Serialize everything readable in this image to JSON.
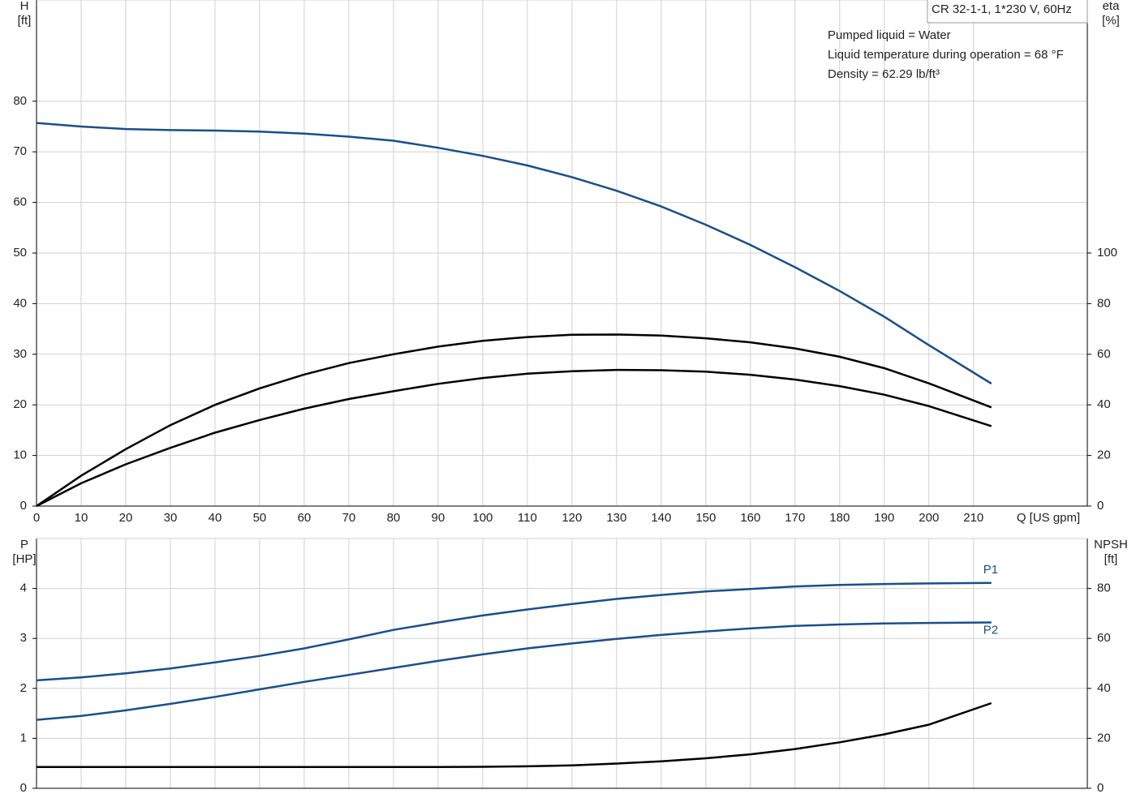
{
  "chart_data": [
    {
      "type": "line",
      "title": "CR 32-1-1, 1*230 V, 60Hz",
      "annotations": [
        "Pumped liquid = Water",
        "Liquid temperature during operation = 68 °F",
        "Density = 62.29 lb/ft³"
      ],
      "ylabel": [
        "H",
        "[ft]"
      ],
      "y2label": [
        "eta",
        "[%]"
      ],
      "xlabel": "Q [US gpm]",
      "xlim": [
        0,
        235.5
      ],
      "xticks": [
        0,
        10,
        20,
        30,
        40,
        50,
        60,
        70,
        80,
        90,
        100,
        110,
        120,
        130,
        140,
        150,
        160,
        170,
        180,
        190,
        200,
        210
      ],
      "ylim": [
        0,
        100
      ],
      "yticks": [
        0,
        10,
        20,
        30,
        40,
        50,
        60,
        70,
        80
      ],
      "y2lim": [
        0,
        200
      ],
      "y2ticks": [
        0,
        20,
        40,
        60,
        80,
        100
      ],
      "grid": true,
      "x": [
        0,
        10,
        20,
        30,
        40,
        50,
        60,
        70,
        80,
        90,
        100,
        110,
        120,
        130,
        140,
        150,
        160,
        170,
        180,
        190,
        200,
        214
      ],
      "series": [
        {
          "color": "#1a4f8a",
          "values": [
            75.7,
            75,
            74.5,
            74.3,
            74.2,
            74,
            73.6,
            73,
            72.2,
            70.8,
            69.2,
            67.3,
            65,
            62.3,
            59.2,
            55.6,
            51.6,
            47.2,
            42.5,
            37.4,
            31.8,
            24.2
          ]
        },
        {
          "color": "#000000",
          "axis": "y2",
          "values": [
            0,
            12,
            22.5,
            32,
            40,
            46.5,
            52,
            56.5,
            60,
            63,
            65.3,
            66.8,
            67.7,
            67.8,
            67.4,
            66.3,
            64.7,
            62.3,
            59,
            54.5,
            48.5,
            39
          ]
        },
        {
          "color": "#000000",
          "axis": "y2",
          "values": [
            0,
            9,
            16.5,
            23,
            29,
            34,
            38.5,
            42.3,
            45.4,
            48.3,
            50.6,
            52.3,
            53.3,
            53.8,
            53.7,
            53.1,
            51.9,
            50,
            47.4,
            44,
            39.5,
            31.6
          ]
        }
      ]
    },
    {
      "type": "line",
      "ylabel": [
        "P",
        "[HP]"
      ],
      "y2label": [
        "NPSH",
        "[ft]"
      ],
      "xlim": [
        0,
        235.5
      ],
      "ylim": [
        0,
        5
      ],
      "yticks": [
        0,
        1,
        2,
        3,
        4
      ],
      "y2lim": [
        0,
        100
      ],
      "y2ticks": [
        0,
        20,
        40,
        60,
        80
      ],
      "grid": true,
      "x": [
        0,
        10,
        20,
        30,
        40,
        50,
        60,
        70,
        80,
        90,
        100,
        110,
        120,
        130,
        140,
        150,
        160,
        170,
        180,
        190,
        200,
        214
      ],
      "series": [
        {
          "name": "P1",
          "color": "#1a4f8a",
          "values": [
            2.16,
            2.22,
            2.3,
            2.4,
            2.52,
            2.65,
            2.8,
            2.98,
            3.17,
            3.32,
            3.46,
            3.58,
            3.69,
            3.79,
            3.87,
            3.94,
            3.99,
            4.04,
            4.07,
            4.09,
            4.1,
            4.11
          ]
        },
        {
          "name": "P2",
          "color": "#1a4f8a",
          "values": [
            1.37,
            1.45,
            1.56,
            1.69,
            1.83,
            1.98,
            2.13,
            2.27,
            2.41,
            2.55,
            2.68,
            2.8,
            2.9,
            2.99,
            3.07,
            3.14,
            3.2,
            3.25,
            3.28,
            3.3,
            3.31,
            3.32
          ]
        },
        {
          "color": "#000000",
          "axis": "y2",
          "values": [
            8.5,
            8.5,
            8.5,
            8.5,
            8.5,
            8.5,
            8.5,
            8.5,
            8.5,
            8.5,
            8.6,
            8.8,
            9.2,
            9.9,
            10.8,
            12,
            13.6,
            15.7,
            18.4,
            21.6,
            25.5,
            34.1
          ]
        }
      ]
    }
  ]
}
